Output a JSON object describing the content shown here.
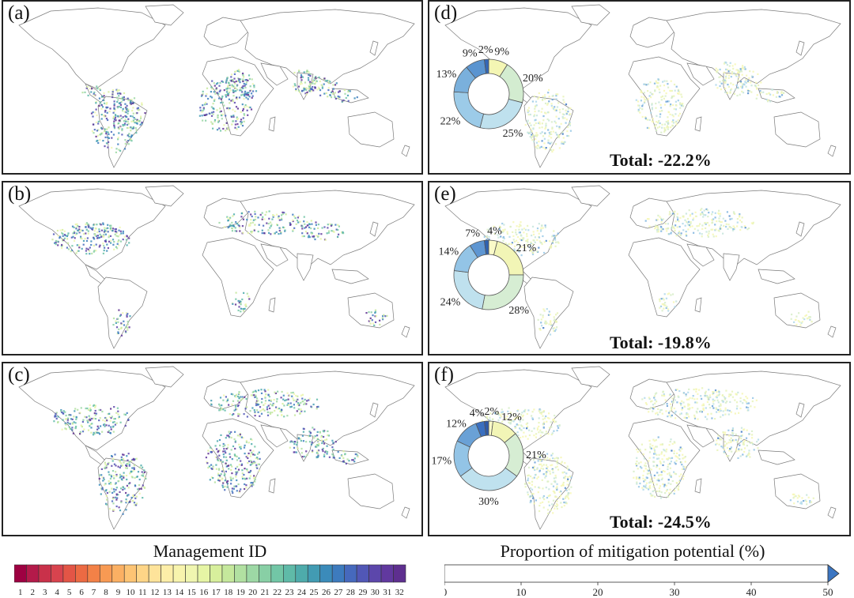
{
  "chart_data": [
    {
      "type": "map",
      "panel": "(a)",
      "label": "(a)",
      "variable": "Management ID",
      "palette": "spectral-32"
    },
    {
      "type": "map",
      "panel": "(b)",
      "label": "(b)",
      "variable": "Management ID",
      "palette": "spectral-32"
    },
    {
      "type": "map",
      "panel": "(c)",
      "label": "(c)",
      "variable": "Management ID",
      "palette": "spectral-32"
    },
    {
      "type": "pie",
      "panel": "(d)",
      "label": "(d)",
      "variable": "Proportion of mitigation potential (%)",
      "total_label": "Total: -22.2%",
      "donut": [
        {
          "label": "9%",
          "value": 9,
          "color": "#f4f6b4"
        },
        {
          "label": "20%",
          "value": 20,
          "color": "#d3ecd0"
        },
        {
          "label": "25%",
          "value": 25,
          "color": "#bfe1ee"
        },
        {
          "label": "22%",
          "value": 22,
          "color": "#9ccbe8"
        },
        {
          "label": "13%",
          "value": 13,
          "color": "#7ab0dc"
        },
        {
          "label": "9%",
          "value": 9,
          "color": "#5a94d0"
        },
        {
          "label": "2%",
          "value": 2,
          "color": "#3468b8"
        }
      ]
    },
    {
      "type": "pie",
      "panel": "(e)",
      "label": "(e)",
      "variable": "Proportion of mitigation potential (%)",
      "total_label": "Total: -19.8%",
      "donut": [
        {
          "label": "4%",
          "value": 4,
          "color": "#fafac8"
        },
        {
          "label": "21%",
          "value": 21,
          "color": "#f2f5b6"
        },
        {
          "label": "28%",
          "value": 28,
          "color": "#d6edd3"
        },
        {
          "label": "24%",
          "value": 24,
          "color": "#bfe1ee"
        },
        {
          "label": "14%",
          "value": 14,
          "color": "#93c4e6"
        },
        {
          "label": "7%",
          "value": 7,
          "color": "#5e96d2"
        },
        {
          "label": "",
          "value": 2,
          "color": "#2f62b0"
        }
      ]
    },
    {
      "type": "pie",
      "panel": "(f)",
      "label": "(f)",
      "variable": "Proportion of mitigation potential (%)",
      "total_label": "Total: -24.5%",
      "donut": [
        {
          "label": "2%",
          "value": 2,
          "color": "#fafac8"
        },
        {
          "label": "12%",
          "value": 12,
          "color": "#f2f5b6"
        },
        {
          "label": "21%",
          "value": 21,
          "color": "#d6edd3"
        },
        {
          "label": "30%",
          "value": 30,
          "color": "#bfe1ee"
        },
        {
          "label": "17%",
          "value": 17,
          "color": "#93c4e6"
        },
        {
          "label": "12%",
          "value": 12,
          "color": "#6aa1d6"
        },
        {
          "label": "4%",
          "value": 4,
          "color": "#3a6fbf"
        },
        {
          "label": "",
          "value": 2,
          "color": "#2f5aa8"
        }
      ]
    }
  ],
  "legend_left": {
    "title": "Management ID",
    "ticks": [
      "1",
      "2",
      "3",
      "4",
      "5",
      "6",
      "7",
      "8",
      "9",
      "10",
      "11",
      "12",
      "13",
      "14",
      "15",
      "16",
      "17",
      "18",
      "19",
      "20",
      "21",
      "22",
      "23",
      "24",
      "25",
      "26",
      "27",
      "28",
      "29",
      "30",
      "31",
      "32"
    ],
    "colors": [
      "#9e0142",
      "#b41a4a",
      "#c9314a",
      "#d8434e",
      "#e35546",
      "#ec6a43",
      "#f38147",
      "#f89a53",
      "#fbb063",
      "#fdc474",
      "#fed587",
      "#fee39a",
      "#fdeea8",
      "#f8f4ad",
      "#f0f6b0",
      "#e6f5a5",
      "#d7ef9c",
      "#c5e89c",
      "#b1e0a1",
      "#9dd8a5",
      "#88cfa5",
      "#72c6a6",
      "#5fbaa8",
      "#4eabab",
      "#429bb3",
      "#3b8bba",
      "#3d7bbe",
      "#4669bd",
      "#5157b6",
      "#5c47ab",
      "#61399f",
      "#5e2f8f"
    ]
  },
  "legend_right": {
    "title": "Proportion of mitigation potential (%)",
    "ticks": [
      "0",
      "10",
      "20",
      "30",
      "40",
      "50"
    ],
    "colors": [
      "#f6f7b4",
      "#e7f3b8",
      "#d7edc8",
      "#c5e5dc",
      "#afd8ea",
      "#98c8e6",
      "#80b5df",
      "#6aa1d6",
      "#548dcd",
      "#3c76c2"
    ]
  }
}
